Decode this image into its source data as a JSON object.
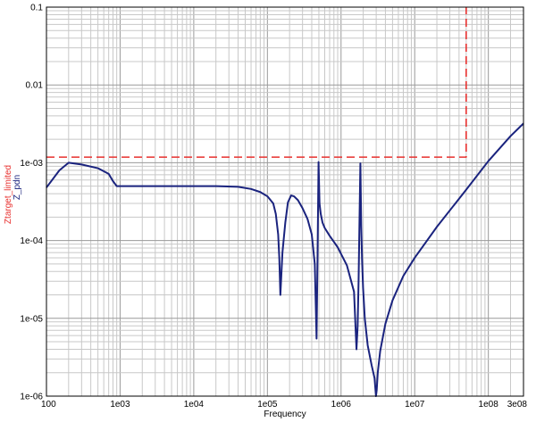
{
  "chart_data": {
    "type": "line",
    "xlabel": "Frequency",
    "ylabel_series": [
      "Ztarget_limited",
      "Z_pdn"
    ],
    "x_scale": "log",
    "y_scale": "log",
    "xlim": [
      100,
      300000000
    ],
    "ylim": [
      1e-06,
      0.1
    ],
    "grid": true,
    "x_ticks": [
      {
        "value": 100,
        "label": "100"
      },
      {
        "value": 1000,
        "label": "1e03"
      },
      {
        "value": 10000,
        "label": "1e04"
      },
      {
        "value": 100000,
        "label": "1e05"
      },
      {
        "value": 1000000,
        "label": "1e06"
      },
      {
        "value": 10000000,
        "label": "1e07"
      },
      {
        "value": 100000000,
        "label": "1e08"
      },
      {
        "value": 300000000,
        "label": "3e08"
      }
    ],
    "y_ticks": [
      {
        "value": 0.1,
        "label": "0.1"
      },
      {
        "value": 0.01,
        "label": "0.01"
      },
      {
        "value": 0.001,
        "label": "1e-03"
      },
      {
        "value": 0.0001,
        "label": "1e-04"
      },
      {
        "value": 1e-05,
        "label": "1e-05"
      },
      {
        "value": 1e-06,
        "label": "1e-06"
      }
    ],
    "series": [
      {
        "name": "Ztarget_limited",
        "color": "#e8312f",
        "dash": true,
        "x": [
          100,
          50000000,
          50000000
        ],
        "y": [
          0.00118,
          0.00118,
          0.1
        ]
      },
      {
        "name": "Z_pdn",
        "color": "#1a237e",
        "dash": false,
        "x": [
          100,
          150,
          200,
          300,
          500,
          700,
          800,
          900,
          1000,
          2000,
          5000,
          10000,
          20000,
          40000,
          60000,
          80000,
          100000,
          120000,
          130000,
          140000,
          145000,
          150000,
          160000,
          175000,
          190000,
          210000,
          230000,
          260000,
          300000,
          350000,
          400000,
          440000,
          465000,
          480000,
          495000,
          510000,
          530000,
          560000,
          600000,
          700000,
          900000,
          1200000,
          1500000,
          1620000,
          1680000,
          1730000,
          1780000,
          1830000,
          1880000,
          1930000,
          1990000,
          2100000,
          2300000,
          2600000,
          2850000,
          2980000,
          3050000,
          3150000,
          3400000,
          4000000,
          5000000,
          7000000,
          10000000,
          20000000,
          50000000,
          100000000,
          200000000,
          300000000
        ],
        "y": [
          0.00048,
          0.0008,
          0.001,
          0.00095,
          0.00085,
          0.00072,
          0.00058,
          0.0005,
          0.0005,
          0.0005,
          0.0005,
          0.0005,
          0.0005,
          0.00049,
          0.00046,
          0.00042,
          0.00037,
          0.0003,
          0.00022,
          0.00012,
          6e-05,
          2e-05,
          7e-05,
          0.00017,
          0.00031,
          0.00038,
          0.00037,
          0.00033,
          0.00026,
          0.00019,
          0.00012,
          5e-05,
          5.5e-06,
          7e-05,
          0.00102,
          0.0003,
          0.00022,
          0.00017,
          0.000145,
          0.000115,
          8.2e-05,
          4.8e-05,
          2.2e-05,
          4e-06,
          8e-06,
          3e-05,
          0.00018,
          0.00098,
          0.00015,
          5.5e-05,
          2.5e-05,
          1e-05,
          4.5e-06,
          2.5e-06,
          1.7e-06,
          1e-06,
          1.2e-06,
          2e-06,
          3.8e-06,
          8.5e-06,
          1.7e-05,
          3.5e-05,
          6e-05,
          0.00015,
          0.00045,
          0.00105,
          0.0022,
          0.0032
        ]
      }
    ]
  }
}
